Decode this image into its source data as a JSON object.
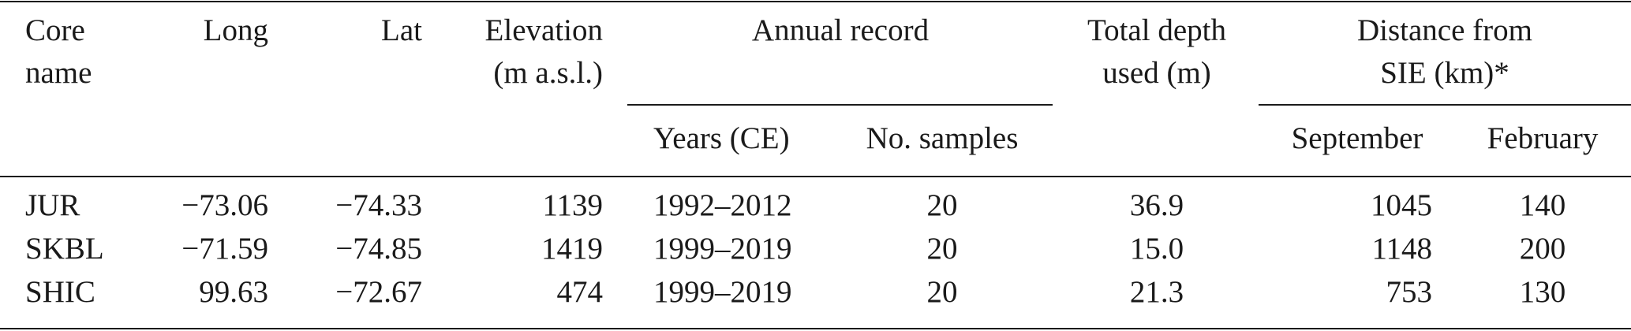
{
  "table": {
    "header": [
      [
        "Core",
        "name"
      ],
      [
        "Long"
      ],
      [
        "Lat"
      ],
      [
        "Elevation",
        "(m a.s.l.)"
      ],
      [
        "Annual record"
      ],
      [
        "Total depth",
        "used (m)"
      ],
      [
        "Distance from",
        "SIE (km)*"
      ]
    ],
    "subheader": [
      "Years (CE)",
      "No. samples",
      "September",
      "February"
    ],
    "rows": [
      [
        "JUR",
        "−73.06",
        "−74.33",
        "1139",
        "1992–2012",
        "20",
        "36.9",
        "1045",
        "140"
      ],
      [
        "SKBL",
        "−71.59",
        "−74.85",
        "1419",
        "1999–2019",
        "20",
        "15.0",
        "1148",
        "200"
      ],
      [
        "SHIC",
        "99.63",
        "−72.67",
        "474",
        "1999–2019",
        "20",
        "21.3",
        "753",
        "130"
      ]
    ]
  }
}
